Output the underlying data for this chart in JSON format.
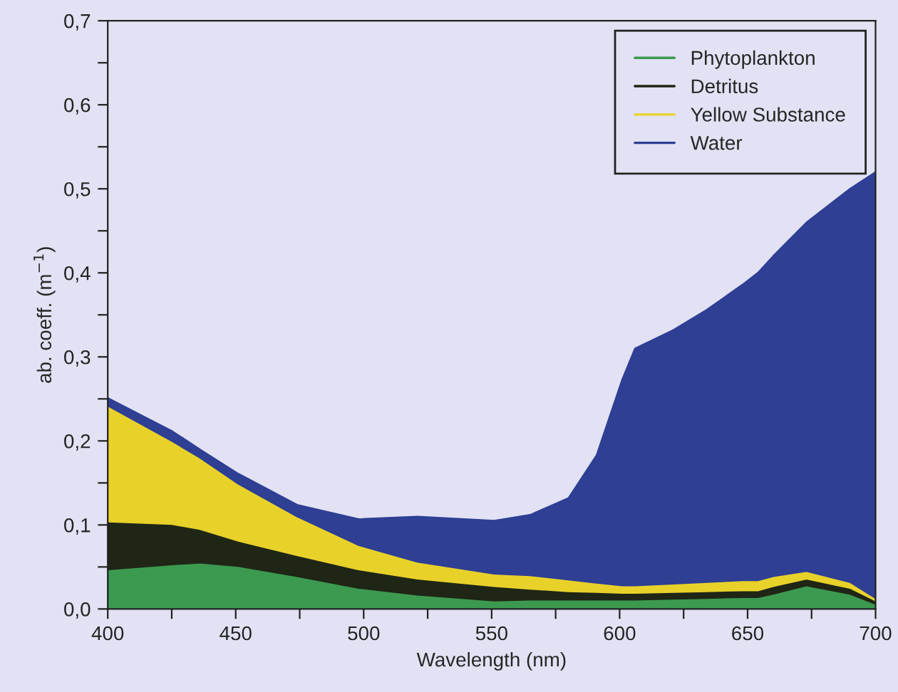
{
  "chart_data": {
    "type": "area",
    "stacked": true,
    "xlabel": "Wavelength (nm)",
    "ylabel": "ab. coeff. (m$^{−1}$)",
    "x": [
      400,
      425,
      436,
      451,
      474,
      498,
      521,
      551,
      565,
      580,
      591,
      601,
      606,
      621,
      634,
      648,
      654,
      660,
      673,
      690,
      700
    ],
    "series": [
      {
        "name": "Phytoplankton",
        "color": "#3c9a50",
        "values": [
          0.047,
          0.053,
          0.055,
          0.051,
          0.039,
          0.025,
          0.017,
          0.01,
          0.011,
          0.011,
          0.011,
          0.011,
          0.011,
          0.012,
          0.013,
          0.014,
          0.014,
          0.018,
          0.028,
          0.018,
          0.006
        ]
      },
      {
        "name": "Detritus",
        "color": "#1f2616",
        "values": [
          0.057,
          0.048,
          0.04,
          0.03,
          0.025,
          0.022,
          0.019,
          0.017,
          0.013,
          0.01,
          0.009,
          0.008,
          0.008,
          0.008,
          0.008,
          0.008,
          0.008,
          0.009,
          0.008,
          0.007,
          0.004
        ]
      },
      {
        "name": "Yellow Substance",
        "color": "#e8d22a",
        "values": [
          0.138,
          0.099,
          0.085,
          0.068,
          0.046,
          0.029,
          0.02,
          0.015,
          0.016,
          0.014,
          0.011,
          0.009,
          0.009,
          0.01,
          0.011,
          0.012,
          0.012,
          0.012,
          0.009,
          0.007,
          0.003
        ]
      },
      {
        "name": "Water",
        "color": "#2e3f94",
        "values": [
          0.009,
          0.012,
          0.01,
          0.012,
          0.014,
          0.031,
          0.054,
          0.063,
          0.072,
          0.097,
          0.152,
          0.245,
          0.282,
          0.302,
          0.324,
          0.352,
          0.366,
          0.381,
          0.415,
          0.468,
          0.507
        ]
      }
    ],
    "xlim": [
      400,
      700
    ],
    "xticks": [
      400,
      {
        "value": 425,
        "label": null
      },
      450,
      {
        "value": 475,
        "label": null
      },
      500,
      {
        "value": 525,
        "label": null
      },
      550,
      {
        "value": 575,
        "label": null
      },
      600,
      {
        "value": 625,
        "label": null
      },
      650,
      {
        "value": 675,
        "label": null
      },
      700
    ],
    "ylim": [
      0,
      0.7
    ],
    "yticks": [
      {
        "value": 0,
        "label": "0,0"
      },
      {
        "value": 0.05,
        "label": null
      },
      {
        "value": 0.1,
        "label": "0,1"
      },
      {
        "value": 0.15,
        "label": null
      },
      {
        "value": 0.2,
        "label": "0,2"
      },
      {
        "value": 0.25,
        "label": null
      },
      {
        "value": 0.3,
        "label": "0,3"
      },
      {
        "value": 0.35,
        "label": null
      },
      {
        "value": 0.4,
        "label": "0,4"
      },
      {
        "value": 0.45,
        "label": null
      },
      {
        "value": 0.5,
        "label": "0,5"
      },
      {
        "value": 0.55,
        "label": null
      },
      {
        "value": 0.6,
        "label": "0,6"
      },
      {
        "value": 0.65,
        "label": null
      },
      {
        "value": 0.7,
        "label": "0,7"
      }
    ],
    "grid": false,
    "legend": "top right"
  }
}
